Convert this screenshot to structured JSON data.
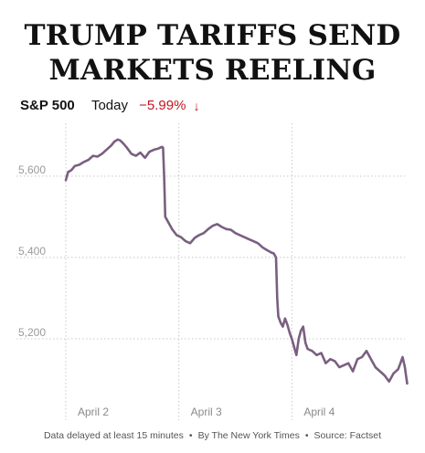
{
  "headline": {
    "line1": "TRUMP TARIFFS SEND",
    "line2": "MARKETS REELING"
  },
  "ticker": {
    "index_name": "S&P 500",
    "period": "Today",
    "change": "−5.99%",
    "direction_icon": "arrow-down-icon",
    "change_color": "#c0151f"
  },
  "footer": {
    "note": "Data delayed at least 15 minutes",
    "byline": "By The New York Times",
    "source": "Source: Factset"
  },
  "chart_data": {
    "type": "line",
    "title": "",
    "xlabel": "",
    "ylabel": "",
    "line_color": "#7a5f80",
    "grid": "dotted",
    "y_ticks": [
      {
        "value": 5600,
        "label": "5,600"
      },
      {
        "value": 5400,
        "label": "5,400"
      },
      {
        "value": 5200,
        "label": "5,200"
      }
    ],
    "ylim": [
      5000,
      5730
    ],
    "xlim": [
      0,
      3
    ],
    "x_ticks": [
      {
        "value": 0,
        "label": "April 2"
      },
      {
        "value": 1,
        "label": "April 3"
      },
      {
        "value": 2,
        "label": "April 4"
      }
    ],
    "series": [
      {
        "values": [
          [
            0.0,
            5590
          ],
          [
            0.02,
            5610
          ],
          [
            0.05,
            5615
          ],
          [
            0.08,
            5625
          ],
          [
            0.12,
            5628
          ],
          [
            0.16,
            5635
          ],
          [
            0.2,
            5640
          ],
          [
            0.24,
            5650
          ],
          [
            0.28,
            5648
          ],
          [
            0.32,
            5655
          ],
          [
            0.36,
            5665
          ],
          [
            0.4,
            5675
          ],
          [
            0.43,
            5685
          ],
          [
            0.46,
            5690
          ],
          [
            0.48,
            5688
          ],
          [
            0.51,
            5680
          ],
          [
            0.54,
            5670
          ],
          [
            0.58,
            5655
          ],
          [
            0.62,
            5650
          ],
          [
            0.66,
            5658
          ],
          [
            0.7,
            5645
          ],
          [
            0.74,
            5660
          ],
          [
            0.78,
            5665
          ],
          [
            0.82,
            5668
          ],
          [
            0.85,
            5672
          ],
          [
            0.86,
            5670
          ],
          [
            0.87,
            5600
          ],
          [
            0.88,
            5500
          ],
          [
            0.9,
            5490
          ],
          [
            0.94,
            5470
          ],
          [
            0.98,
            5455
          ],
          [
            1.02,
            5450
          ],
          [
            1.06,
            5440
          ],
          [
            1.1,
            5435
          ],
          [
            1.14,
            5448
          ],
          [
            1.18,
            5455
          ],
          [
            1.22,
            5460
          ],
          [
            1.26,
            5470
          ],
          [
            1.3,
            5478
          ],
          [
            1.34,
            5482
          ],
          [
            1.38,
            5475
          ],
          [
            1.42,
            5470
          ],
          [
            1.46,
            5468
          ],
          [
            1.5,
            5460
          ],
          [
            1.54,
            5455
          ],
          [
            1.58,
            5450
          ],
          [
            1.62,
            5445
          ],
          [
            1.66,
            5440
          ],
          [
            1.7,
            5435
          ],
          [
            1.74,
            5425
          ],
          [
            1.78,
            5418
          ],
          [
            1.82,
            5412
          ],
          [
            1.84,
            5410
          ],
          [
            1.85,
            5405
          ],
          [
            1.86,
            5400
          ],
          [
            1.87,
            5300
          ],
          [
            1.88,
            5255
          ],
          [
            1.9,
            5240
          ],
          [
            1.92,
            5230
          ],
          [
            1.94,
            5250
          ],
          [
            1.96,
            5235
          ],
          [
            1.98,
            5215
          ],
          [
            2.0,
            5200
          ],
          [
            2.02,
            5180
          ],
          [
            2.04,
            5160
          ],
          [
            2.06,
            5200
          ],
          [
            2.08,
            5220
          ],
          [
            2.1,
            5230
          ],
          [
            2.12,
            5190
          ],
          [
            2.14,
            5175
          ],
          [
            2.18,
            5170
          ],
          [
            2.22,
            5160
          ],
          [
            2.26,
            5165
          ],
          [
            2.3,
            5140
          ],
          [
            2.34,
            5150
          ],
          [
            2.38,
            5145
          ],
          [
            2.42,
            5130
          ],
          [
            2.46,
            5135
          ],
          [
            2.5,
            5140
          ],
          [
            2.54,
            5120
          ],
          [
            2.58,
            5150
          ],
          [
            2.62,
            5155
          ],
          [
            2.66,
            5170
          ],
          [
            2.7,
            5150
          ],
          [
            2.74,
            5130
          ],
          [
            2.78,
            5120
          ],
          [
            2.82,
            5110
          ],
          [
            2.86,
            5095
          ],
          [
            2.9,
            5115
          ],
          [
            2.94,
            5125
          ],
          [
            2.96,
            5140
          ],
          [
            2.98,
            5155
          ],
          [
            3.0,
            5130
          ],
          [
            3.01,
            5110
          ],
          [
            3.02,
            5090
          ]
        ]
      }
    ]
  }
}
